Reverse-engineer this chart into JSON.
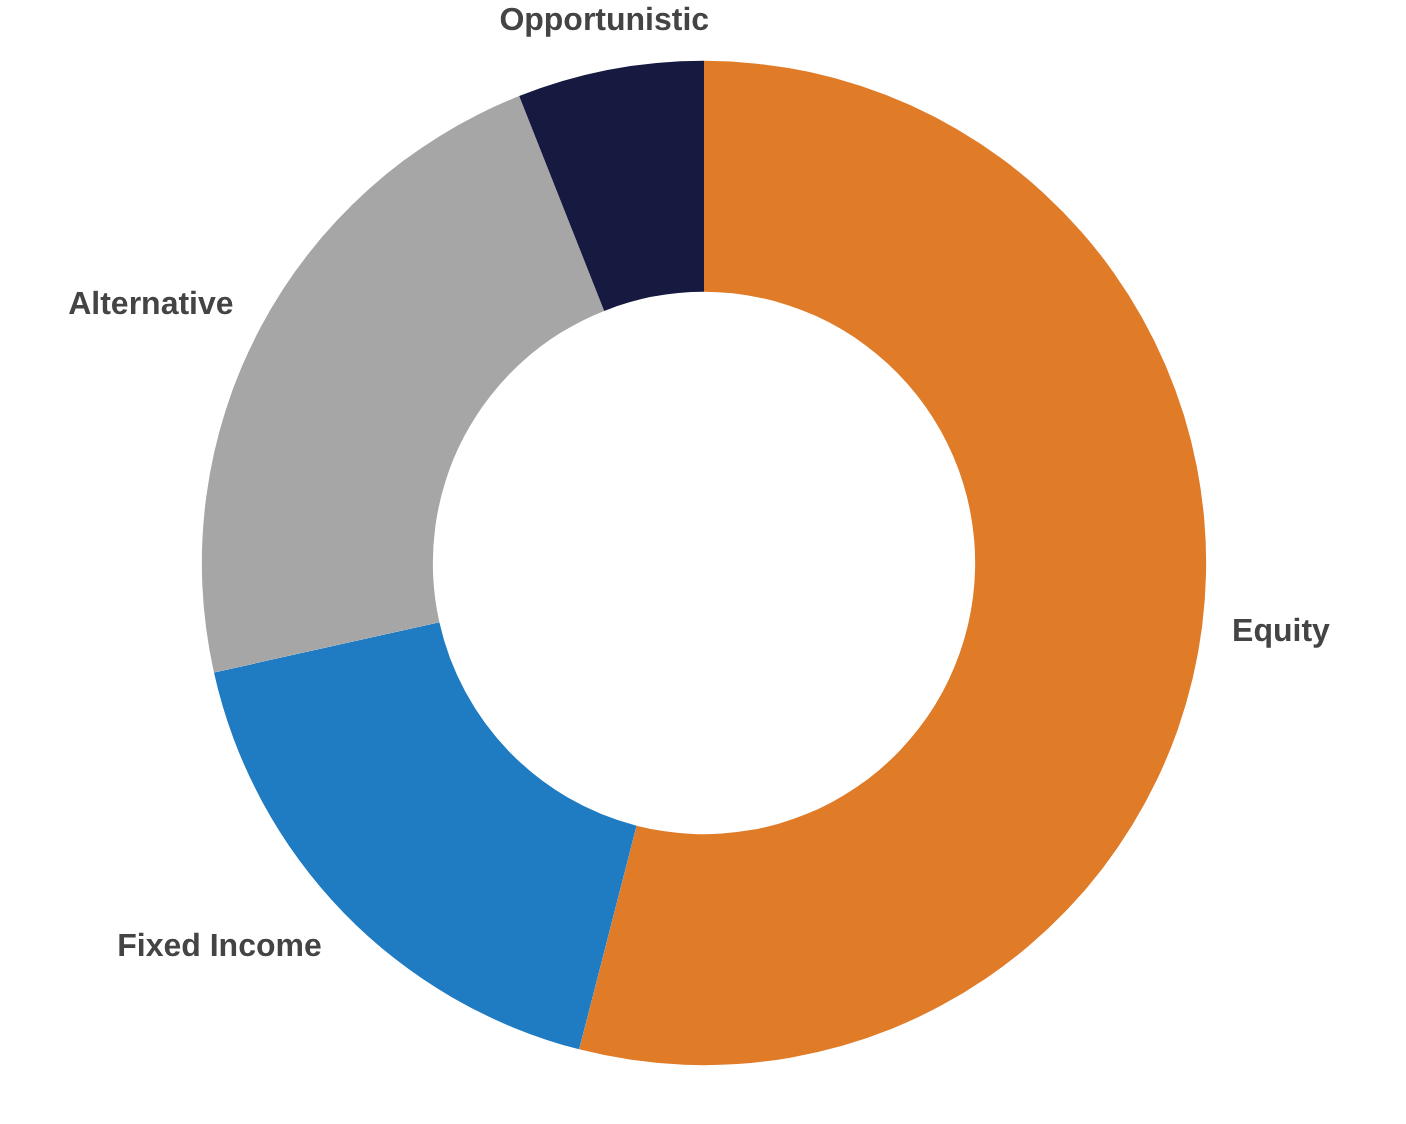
{
  "chart_data": {
    "type": "donut",
    "categories": [
      "Equity",
      "Fixed Income",
      "Alternative",
      "Opportunistic"
    ],
    "values": [
      54,
      17.5,
      22.5,
      6
    ],
    "colors": [
      "#e07b28",
      "#1f7cc2",
      "#a6a6a6",
      "#161a40"
    ]
  }
}
